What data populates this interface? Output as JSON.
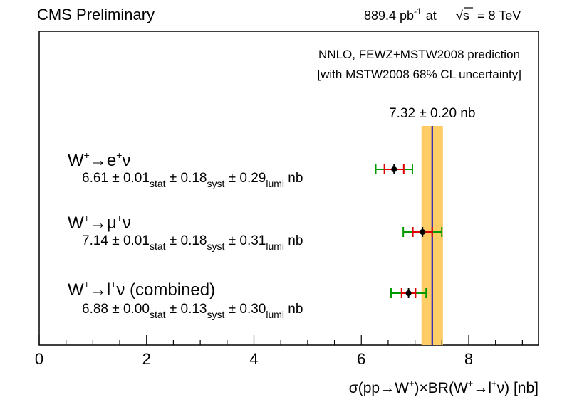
{
  "header": {
    "left": "CMS Preliminary",
    "lumi_value": "889.4 pb",
    "lumi_exp": "-1",
    "lumi_at": "at",
    "sqrt_symbol": "√s",
    "energy": "= 8 TeV"
  },
  "legend": {
    "line1": "NNLO, FEWZ+MSTW2008 prediction",
    "line2": "[with MSTW2008 68% CL uncertainty]"
  },
  "prediction_label": "7.32 ± 0.20 nb",
  "xlabel": {
    "sigma": "σ(pp→W",
    "plus1": "+",
    "mid": ")×BR(W",
    "plus2": "+",
    "arrow": "→l",
    "plus3": "+",
    "end": "ν) [nb]"
  },
  "colors": {
    "band": "#ffcc66",
    "prediction_line": "#0000cc",
    "stat_syst_error": "#dd0000",
    "total_error": "#009900",
    "marker": "#000000"
  },
  "chart_data": {
    "type": "scatter",
    "xlim": [
      0,
      9.3
    ],
    "xticks": [
      0,
      2,
      4,
      6,
      8
    ],
    "xtick_labels": [
      "0",
      "2",
      "4",
      "6",
      "8"
    ],
    "grid": false,
    "prediction": {
      "value": 7.32,
      "uncertainty": 0.2
    },
    "measurements": [
      {
        "label_main": "W",
        "label_sup1": "+",
        "label_rest": "→e",
        "label_sup2": "+",
        "label_end": "ν",
        "value": 6.61,
        "stat": 0.01,
        "syst": 0.18,
        "lumi": 0.29,
        "val_text": "6.61",
        "stat_text": "0.01",
        "syst_text": "0.18",
        "lumi_text": "0.29",
        "unit": "nb"
      },
      {
        "label_main": "W",
        "label_sup1": "+",
        "label_rest": "→μ",
        "label_sup2": "+",
        "label_end": "ν",
        "value": 7.14,
        "stat": 0.01,
        "syst": 0.18,
        "lumi": 0.31,
        "val_text": "7.14",
        "stat_text": "0.01",
        "syst_text": "0.18",
        "lumi_text": "0.31",
        "unit": "nb"
      },
      {
        "label_main": "W",
        "label_sup1": "+",
        "label_rest": "→l",
        "label_sup2": "+",
        "label_end": "ν (combined)",
        "value": 6.88,
        "stat": 0.0,
        "syst": 0.13,
        "lumi": 0.3,
        "val_text": "6.88",
        "stat_text": "0.00",
        "syst_text": "0.13",
        "lumi_text": "0.30",
        "unit": "nb"
      }
    ],
    "pm": "±",
    "sub_stat": "stat",
    "sub_syst": "syst",
    "sub_lumi": "lumi"
  }
}
